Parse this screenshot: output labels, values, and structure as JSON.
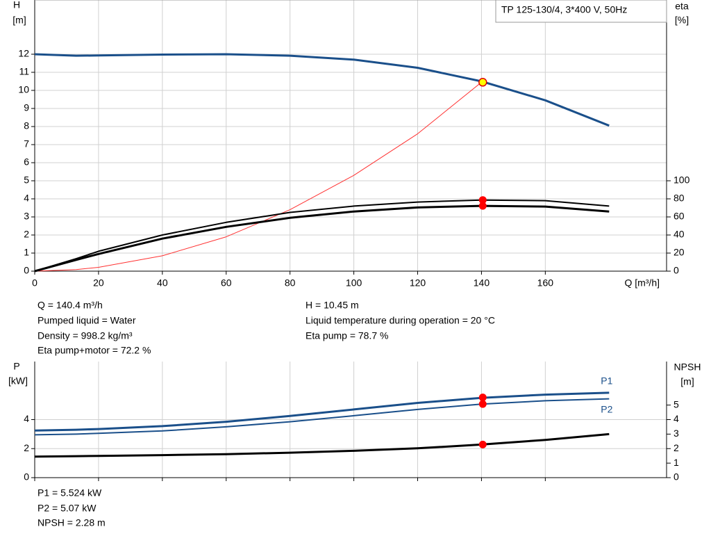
{
  "chart_data": [
    {
      "type": "line",
      "title": "TP 125-130/4, 3*400 V, 50Hz",
      "ylabel": "H",
      "yunit": "[m]",
      "y2label": "eta",
      "y2unit": "[%]",
      "xlabel": "Q [m³/h]",
      "xlim": [
        0,
        198
      ],
      "xticks": [
        0,
        20,
        40,
        60,
        80,
        100,
        120,
        140,
        160
      ],
      "ylim": [
        0,
        15
      ],
      "yticks": [
        0,
        1,
        2,
        3,
        4,
        5,
        6,
        7,
        8,
        9,
        10,
        11,
        12
      ],
      "y2lim": [
        0,
        300
      ],
      "y2ticks": [
        0,
        20,
        40,
        60,
        80,
        100
      ],
      "grid": true,
      "x": [
        0,
        13,
        20,
        40,
        60,
        80,
        100,
        120,
        140,
        160,
        180
      ],
      "series": [
        {
          "color": "#1a4f8a",
          "width": 3,
          "values": [
            12.0,
            11.92,
            11.93,
            11.98,
            12.0,
            11.92,
            11.7,
            11.25,
            10.5,
            9.45,
            8.05
          ]
        },
        {
          "color": "#ff3030",
          "width": 1,
          "values": [
            0,
            0.09,
            0.21,
            0.85,
            1.9,
            3.4,
            5.3,
            7.6,
            10.45,
            null,
            null
          ]
        },
        {
          "color": "#000000",
          "width": 2,
          "axis": "y2",
          "values": [
            0,
            13.8,
            22,
            40,
            54,
            65,
            72,
            76.5,
            78.7,
            78,
            72
          ]
        },
        {
          "color": "#000000",
          "width": 3,
          "axis": "y2",
          "values": [
            0,
            12.5,
            19,
            36,
            49,
            59,
            66,
            70.5,
            72.2,
            71.5,
            66
          ]
        }
      ],
      "points": [
        {
          "x": 140.4,
          "y": 10.45,
          "color": "#ffff00"
        },
        {
          "x": 140.4,
          "y": 78.7,
          "color": "#ff0000",
          "axis": "y2"
        },
        {
          "x": 140.4,
          "y": 72.2,
          "color": "#ff0000",
          "axis": "y2"
        }
      ],
      "annotations": [
        "Q = 140.4 m³/h",
        "Pumped liquid = Water",
        "Density = 998.2 kg/m³",
        "Eta pump+motor = 72.2 %",
        "H = 10.45 m",
        "Liquid temperature during operation = 20 °C",
        "Eta pump = 78.7 %"
      ]
    },
    {
      "type": "line",
      "ylabel": "P",
      "yunit": "[kW]",
      "y2label": "NPSH",
      "y2unit": "[m]",
      "xlim": [
        0,
        198
      ],
      "ylim": [
        0,
        8
      ],
      "yticks": [
        0,
        2,
        4
      ],
      "y2lim": [
        0,
        8
      ],
      "y2ticks": [
        0,
        1,
        2,
        3,
        4,
        5
      ],
      "grid": true,
      "x": [
        0,
        13,
        20,
        40,
        60,
        80,
        100,
        120,
        140,
        160,
        180
      ],
      "series": [
        {
          "name": "P1",
          "color": "#1a4f8a",
          "width": 3,
          "values": [
            3.25,
            3.3,
            3.35,
            3.55,
            3.85,
            4.25,
            4.7,
            5.15,
            5.5,
            5.72,
            5.85
          ]
        },
        {
          "name": "P2",
          "color": "#1a4f8a",
          "width": 2,
          "values": [
            2.95,
            3.0,
            3.05,
            3.22,
            3.5,
            3.85,
            4.27,
            4.7,
            5.07,
            5.3,
            5.43
          ]
        },
        {
          "color": "#000000",
          "width": 3,
          "axis": "y2",
          "values": [
            1.45,
            1.48,
            1.5,
            1.55,
            1.62,
            1.72,
            1.85,
            2.02,
            2.28,
            2.6,
            3.0
          ]
        }
      ],
      "points": [
        {
          "x": 140.4,
          "y": 5.524,
          "color": "#ff0000"
        },
        {
          "x": 140.4,
          "y": 5.07,
          "color": "#ff0000"
        },
        {
          "x": 140.4,
          "y": 2.28,
          "color": "#ff0000",
          "axis": "y2"
        }
      ],
      "annotations": [
        "P1 = 5.524 kW",
        "P2 = 5.07 kW",
        "NPSH = 2.28 m"
      ]
    }
  ]
}
